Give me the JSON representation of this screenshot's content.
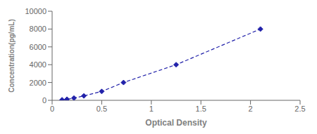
{
  "chart_data": {
    "type": "line",
    "x": [
      0.1,
      0.15,
      0.22,
      0.32,
      0.5,
      0.72,
      1.25,
      2.1
    ],
    "values": [
      62,
      125,
      250,
      500,
      1000,
      2000,
      4000,
      8000
    ],
    "xlabel": "Optical Density",
    "ylabel": "Concentration(pg/mL)",
    "xlim": [
      0,
      2.5
    ],
    "ylim": [
      0,
      10000
    ],
    "xticks": [
      0,
      0.5,
      1,
      1.5,
      2,
      2.5
    ],
    "yticks": [
      0,
      2000,
      4000,
      6000,
      8000,
      10000
    ],
    "color": "#2222aa",
    "marker": "diamond",
    "line_style": "dashed"
  }
}
